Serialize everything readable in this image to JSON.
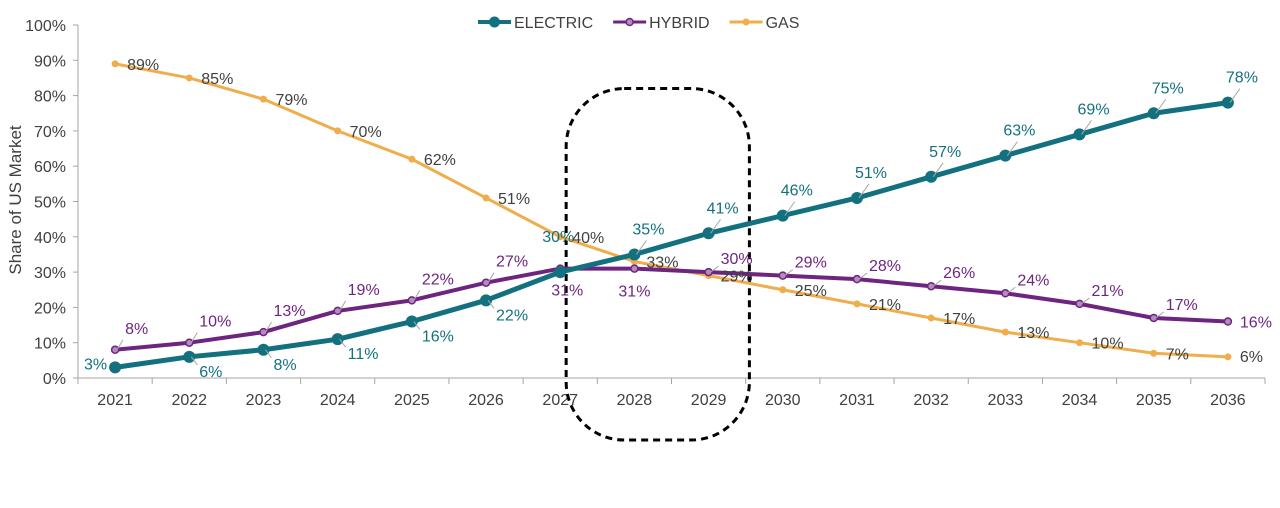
{
  "chart_data": {
    "type": "line",
    "title": "",
    "xlabel": "",
    "ylabel": "Share of US Market",
    "ylim": [
      0,
      100
    ],
    "yticks": [
      "0%",
      "10%",
      "20%",
      "30%",
      "40%",
      "50%",
      "60%",
      "70%",
      "80%",
      "90%",
      "100%"
    ],
    "categories": [
      "2021",
      "2022",
      "2023",
      "2024",
      "2025",
      "2026",
      "2027",
      "2028",
      "2029",
      "2030",
      "2031",
      "2032",
      "2033",
      "2034",
      "2035",
      "2036"
    ],
    "legend_position": "top-center",
    "highlighted_range": [
      "2027",
      "2029"
    ],
    "series": [
      {
        "name": "ELECTRIC",
        "color": "#13717f",
        "values": [
          3,
          6,
          8,
          11,
          16,
          22,
          30,
          35,
          41,
          46,
          51,
          57,
          63,
          69,
          75,
          78
        ],
        "labels": [
          "3%",
          "6%",
          "8%",
          "11%",
          "16%",
          "22%",
          "30%",
          "35%",
          "41%",
          "46%",
          "51%",
          "57%",
          "63%",
          "69%",
          "75%",
          "78%"
        ]
      },
      {
        "name": "HYBRID",
        "color": "#6e2580",
        "values": [
          8,
          10,
          13,
          19,
          22,
          27,
          31,
          31,
          30,
          29,
          28,
          26,
          24,
          21,
          17,
          16
        ],
        "labels": [
          "8%",
          "10%",
          "13%",
          "19%",
          "22%",
          "27%",
          "31%",
          "31%",
          "30%",
          "29%",
          "28%",
          "26%",
          "24%",
          "21%",
          "17%",
          "16%"
        ]
      },
      {
        "name": "GAS",
        "color": "#efad4c",
        "values": [
          89,
          85,
          79,
          70,
          62,
          51,
          40,
          33,
          29,
          25,
          21,
          17,
          13,
          10,
          7,
          6
        ],
        "labels": [
          "89%",
          "85%",
          "79%",
          "70%",
          "62%",
          "51%",
          "40%",
          "33%",
          "29%",
          "25%",
          "21%",
          "17%",
          "13%",
          "10%",
          "7%",
          "6%"
        ]
      }
    ]
  }
}
